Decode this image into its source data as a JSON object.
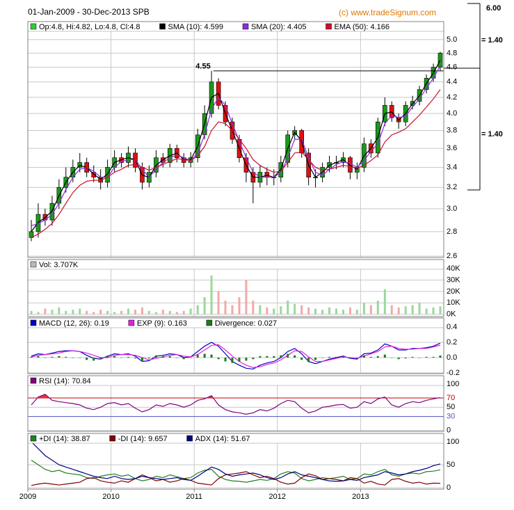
{
  "header": {
    "title": "01-Jan-2009 - 30-Dec-2013 SPB",
    "copyright": "(c) www.tradeSignum.com"
  },
  "side_scale": {
    "labels": [
      "6.00",
      "= 1.40",
      "= 1.40"
    ]
  },
  "chart_data": [
    {
      "type": "candlestick",
      "log_scale": true,
      "grid": true,
      "legend_label": "Op:4.8, Hi:4.82, Lo:4.8, Cl:4.8",
      "legend_color": "#33cc33",
      "up_color": "#1a9a1a",
      "down_color": "#e01010",
      "xlim": [
        2009,
        2014
      ],
      "xticks": [
        2009,
        2010,
        2011,
        2012,
        2013
      ],
      "ylim": [
        2.59,
        5.28
      ],
      "yticks": [
        2.6,
        2.8,
        {
          "value": 3,
          "label": "3.0"
        },
        3.2,
        3.4,
        3.6,
        3.8,
        {
          "value": 4,
          "label": "4.0"
        },
        4.2,
        4.4,
        4.6,
        4.8,
        {
          "value": 5,
          "label": "5.0"
        }
      ],
      "annotation": {
        "value": 4.55,
        "x": 2011.23
      },
      "x": [
        2009.042,
        2009.125,
        2009.208,
        2009.292,
        2009.375,
        2009.458,
        2009.542,
        2009.625,
        2009.708,
        2009.792,
        2009.875,
        2009.958,
        2010.042,
        2010.125,
        2010.208,
        2010.292,
        2010.375,
        2010.458,
        2010.542,
        2010.625,
        2010.708,
        2010.792,
        2010.875,
        2010.958,
        2011.042,
        2011.125,
        2011.208,
        2011.292,
        2011.375,
        2011.458,
        2011.542,
        2011.625,
        2011.708,
        2011.792,
        2011.875,
        2011.958,
        2012.042,
        2012.125,
        2012.208,
        2012.292,
        2012.375,
        2012.458,
        2012.542,
        2012.625,
        2012.708,
        2012.792,
        2012.875,
        2012.958,
        2013.042,
        2013.125,
        2013.208,
        2013.292,
        2013.375,
        2013.458,
        2013.542,
        2013.625,
        2013.708,
        2013.792,
        2013.875,
        2013.958
      ],
      "open": [
        2.75,
        2.8,
        2.95,
        2.9,
        3.05,
        3.2,
        3.3,
        3.4,
        3.45,
        3.35,
        3.3,
        3.25,
        3.4,
        3.5,
        3.45,
        3.55,
        3.4,
        3.25,
        3.35,
        3.5,
        3.45,
        3.6,
        3.5,
        3.45,
        3.5,
        3.75,
        4.0,
        4.4,
        4.1,
        3.9,
        3.7,
        3.5,
        3.35,
        3.25,
        3.35,
        3.3,
        3.3,
        3.45,
        3.75,
        3.8,
        3.55,
        3.3,
        3.3,
        3.4,
        3.45,
        3.45,
        3.5,
        3.35,
        3.4,
        3.65,
        3.55,
        3.9,
        4.1,
        3.95,
        3.9,
        4.1,
        4.15,
        4.3,
        4.45,
        4.6
      ],
      "high": [
        2.9,
        3.05,
        3.0,
        3.12,
        3.28,
        3.4,
        3.48,
        3.55,
        3.5,
        3.42,
        3.38,
        3.48,
        3.58,
        3.55,
        3.62,
        3.6,
        3.45,
        3.42,
        3.58,
        3.55,
        3.65,
        3.64,
        3.55,
        3.56,
        3.82,
        4.1,
        4.55,
        4.45,
        4.15,
        3.95,
        3.75,
        3.55,
        3.4,
        3.42,
        3.4,
        3.38,
        3.52,
        3.8,
        3.85,
        3.82,
        3.6,
        3.38,
        3.45,
        3.52,
        3.52,
        3.56,
        3.52,
        3.45,
        3.72,
        3.7,
        3.95,
        4.2,
        4.15,
        4.0,
        4.15,
        4.22,
        4.35,
        4.5,
        4.65,
        4.82
      ],
      "low": [
        2.72,
        2.75,
        2.85,
        2.85,
        3.0,
        3.15,
        3.25,
        3.35,
        3.3,
        3.25,
        3.18,
        3.2,
        3.35,
        3.4,
        3.4,
        3.35,
        3.18,
        3.2,
        3.3,
        3.4,
        3.4,
        3.45,
        3.4,
        3.4,
        3.45,
        3.7,
        3.95,
        4.05,
        3.85,
        3.65,
        3.45,
        3.25,
        3.05,
        3.2,
        3.22,
        3.22,
        3.25,
        3.4,
        3.7,
        3.5,
        3.22,
        3.2,
        3.25,
        3.35,
        3.38,
        3.4,
        3.28,
        3.28,
        3.35,
        3.5,
        3.5,
        3.85,
        3.9,
        3.82,
        3.85,
        4.05,
        4.1,
        4.25,
        4.4,
        4.55
      ],
      "close": [
        2.8,
        2.95,
        2.9,
        3.05,
        3.2,
        3.3,
        3.4,
        3.45,
        3.35,
        3.3,
        3.25,
        3.4,
        3.5,
        3.45,
        3.55,
        3.4,
        3.25,
        3.35,
        3.5,
        3.45,
        3.6,
        3.5,
        3.45,
        3.5,
        3.75,
        4.0,
        4.4,
        4.1,
        3.9,
        3.7,
        3.5,
        3.35,
        3.25,
        3.35,
        3.3,
        3.3,
        3.45,
        3.75,
        3.8,
        3.55,
        3.3,
        3.3,
        3.4,
        3.45,
        3.45,
        3.5,
        3.35,
        3.4,
        3.65,
        3.55,
        3.9,
        4.1,
        3.95,
        3.9,
        4.1,
        4.15,
        4.3,
        4.45,
        4.6,
        4.8
      ],
      "series": [
        {
          "name": "SMA (10): 4.599",
          "type": "line",
          "color": "#000000",
          "values": [
            2.8,
            2.88,
            2.92,
            2.98,
            3.12,
            3.25,
            3.35,
            3.42,
            3.4,
            3.33,
            3.28,
            3.33,
            3.45,
            3.48,
            3.5,
            3.48,
            3.32,
            3.3,
            3.42,
            3.48,
            3.52,
            3.55,
            3.48,
            3.48,
            3.62,
            3.88,
            4.2,
            4.25,
            4.0,
            3.8,
            3.6,
            3.42,
            3.3,
            3.3,
            3.32,
            3.3,
            3.38,
            3.6,
            3.78,
            3.68,
            3.42,
            3.3,
            3.35,
            3.42,
            3.45,
            3.48,
            3.42,
            3.38,
            3.52,
            3.6,
            3.72,
            4.0,
            4.02,
            3.92,
            4.0,
            4.12,
            4.22,
            4.38,
            4.52,
            4.7
          ]
        },
        {
          "name": "SMA (20): 4.405",
          "type": "line",
          "color": "#8a2be2",
          "values": [
            2.85,
            2.87,
            2.9,
            2.95,
            3.05,
            3.18,
            3.3,
            3.38,
            3.4,
            3.36,
            3.3,
            3.3,
            3.4,
            3.46,
            3.48,
            3.48,
            3.38,
            3.3,
            3.38,
            3.45,
            3.5,
            3.53,
            3.5,
            3.47,
            3.55,
            3.75,
            4.05,
            4.2,
            4.1,
            3.88,
            3.68,
            3.5,
            3.35,
            3.3,
            3.3,
            3.3,
            3.35,
            3.5,
            3.7,
            3.7,
            3.5,
            3.35,
            3.32,
            3.38,
            3.43,
            3.46,
            3.44,
            3.4,
            3.47,
            3.57,
            3.65,
            3.88,
            3.98,
            3.95,
            3.97,
            4.08,
            4.18,
            4.32,
            4.45,
            4.62
          ]
        },
        {
          "name": "EMA (50): 4.166",
          "type": "line",
          "color": "#c8102e",
          "values": [
            2.75,
            2.78,
            2.82,
            2.87,
            2.95,
            3.05,
            3.15,
            3.22,
            3.26,
            3.27,
            3.27,
            3.3,
            3.35,
            3.38,
            3.42,
            3.43,
            3.4,
            3.37,
            3.4,
            3.43,
            3.46,
            3.49,
            3.48,
            3.47,
            3.52,
            3.62,
            3.8,
            3.9,
            3.88,
            3.8,
            3.7,
            3.6,
            3.48,
            3.42,
            3.38,
            3.35,
            3.36,
            3.45,
            3.55,
            3.56,
            3.48,
            3.4,
            3.37,
            3.38,
            3.4,
            3.42,
            3.41,
            3.39,
            3.42,
            3.47,
            3.53,
            3.67,
            3.75,
            3.78,
            3.82,
            3.9,
            3.98,
            4.08,
            4.18,
            4.3
          ]
        }
      ]
    },
    {
      "type": "combo",
      "grid": true,
      "ylim": [
        -2000,
        48000
      ],
      "yticks": [
        {
          "value": 0,
          "label": "0K"
        },
        {
          "value": 10000,
          "label": "10K"
        },
        {
          "value": 20000,
          "label": "20K"
        },
        {
          "value": 30000,
          "label": "30K"
        },
        {
          "value": 40000,
          "label": "40K"
        }
      ],
      "series": [
        {
          "name": "Vol: 3.707K",
          "type": "volume",
          "color": "#b8b8b8",
          "up_color": "#9ad89a",
          "down_color": "#f2a8a8",
          "values": [
            3000,
            2000,
            5000,
            4000,
            6000,
            3000,
            4000,
            5000,
            3000,
            2000,
            4000,
            3000,
            2000,
            3000,
            5000,
            4000,
            6000,
            3000,
            2000,
            4000,
            3000,
            2000,
            3000,
            5000,
            8000,
            15000,
            34000,
            20000,
            12000,
            8000,
            15000,
            30000,
            12000,
            8000,
            6000,
            5000,
            7000,
            12000,
            9000,
            8000,
            6000,
            5000,
            4000,
            6000,
            5000,
            4000,
            6000,
            4000,
            10000,
            8000,
            12000,
            22000,
            8000,
            6000,
            7000,
            8000,
            10000,
            5000,
            6000,
            7000
          ]
        }
      ]
    },
    {
      "type": "combo",
      "grid": true,
      "ylim": [
        -0.21,
        0.52
      ],
      "yticks": [
        -0.2,
        {
          "value": 0,
          "label": "0.0"
        },
        0.2,
        0.4
      ],
      "series": [
        {
          "name": "MACD (12, 26): 0.19",
          "type": "line",
          "color": "#0000c0",
          "values": [
            0.02,
            0.05,
            0.04,
            0.06,
            0.08,
            0.09,
            0.09,
            0.08,
            0.03,
            -0.01,
            -0.02,
            0.02,
            0.05,
            0.04,
            0.05,
            0.02,
            -0.05,
            -0.04,
            0.02,
            0.03,
            0.05,
            0.04,
            0.0,
            0.01,
            0.08,
            0.15,
            0.2,
            0.15,
            0.05,
            -0.05,
            -0.1,
            -0.14,
            -0.15,
            -0.1,
            -0.07,
            -0.05,
            0.0,
            0.08,
            0.12,
            0.05,
            -0.05,
            -0.08,
            -0.05,
            -0.02,
            0.0,
            0.02,
            -0.01,
            -0.02,
            0.05,
            0.06,
            0.1,
            0.18,
            0.15,
            0.1,
            0.1,
            0.12,
            0.12,
            0.13,
            0.15,
            0.19
          ]
        },
        {
          "name": "EXP (9): 0.163",
          "type": "line",
          "color": "#e020e0",
          "values": [
            0.01,
            0.03,
            0.04,
            0.05,
            0.06,
            0.08,
            0.09,
            0.08,
            0.06,
            0.03,
            0.0,
            0.0,
            0.03,
            0.04,
            0.04,
            0.03,
            0.0,
            -0.03,
            -0.01,
            0.01,
            0.03,
            0.04,
            0.02,
            0.01,
            0.04,
            0.1,
            0.16,
            0.17,
            0.1,
            0.02,
            -0.05,
            -0.1,
            -0.13,
            -0.12,
            -0.09,
            -0.07,
            -0.03,
            0.03,
            0.09,
            0.08,
            0.01,
            -0.05,
            -0.05,
            -0.03,
            -0.01,
            0.01,
            0.0,
            -0.01,
            0.02,
            0.05,
            0.08,
            0.14,
            0.15,
            0.12,
            0.11,
            0.11,
            0.12,
            0.12,
            0.14,
            0.163
          ]
        },
        {
          "name": "Divergence: 0.027",
          "type": "bar",
          "color": "#1e7a1e",
          "values": [
            0.01,
            0.02,
            0.0,
            0.01,
            0.02,
            0.01,
            0.0,
            0.0,
            -0.03,
            -0.04,
            -0.02,
            0.02,
            0.02,
            0.0,
            0.01,
            -0.01,
            -0.05,
            -0.01,
            0.03,
            0.02,
            0.02,
            0.0,
            -0.02,
            0.0,
            0.04,
            0.05,
            0.04,
            -0.02,
            -0.05,
            -0.07,
            -0.05,
            -0.04,
            -0.02,
            0.02,
            0.02,
            0.02,
            0.03,
            0.05,
            0.03,
            -0.03,
            -0.06,
            -0.03,
            0.0,
            0.01,
            0.01,
            0.01,
            -0.01,
            -0.01,
            0.03,
            0.01,
            0.02,
            0.04,
            0.0,
            -0.02,
            -0.01,
            0.01,
            0.0,
            0.01,
            0.01,
            0.027
          ]
        }
      ]
    },
    {
      "type": "combo",
      "grid": true,
      "ylim": [
        -2,
        118
      ],
      "yticks": [
        0,
        50,
        100
      ],
      "levels": [
        70,
        30
      ],
      "level_colors": [
        "#c00000",
        "#5050c0"
      ],
      "fill_color": "#ee3030",
      "series": [
        {
          "name": "RSI (14): 70.84",
          "type": "line",
          "color": "#800080",
          "values": [
            55,
            72,
            78,
            65,
            62,
            60,
            58,
            55,
            48,
            45,
            50,
            58,
            60,
            55,
            58,
            48,
            40,
            45,
            55,
            52,
            58,
            55,
            50,
            55,
            65,
            68,
            75,
            55,
            45,
            40,
            38,
            35,
            38,
            45,
            42,
            48,
            58,
            65,
            62,
            48,
            38,
            42,
            50,
            52,
            55,
            56,
            48,
            50,
            62,
            58,
            68,
            72,
            55,
            50,
            58,
            62,
            60,
            65,
            68,
            70.84
          ]
        }
      ]
    },
    {
      "type": "combo",
      "grid": true,
      "ylim": [
        -3,
        118
      ],
      "yticks": [
        0,
        50,
        100
      ],
      "series": [
        {
          "name": "+DI (14): 38.87",
          "type": "line",
          "color": "#208020",
          "values": [
            60,
            50,
            40,
            35,
            38,
            32,
            30,
            28,
            22,
            20,
            25,
            28,
            30,
            25,
            28,
            20,
            15,
            18,
            25,
            22,
            28,
            24,
            20,
            22,
            32,
            38,
            40,
            25,
            18,
            15,
            14,
            12,
            15,
            18,
            16,
            20,
            30,
            35,
            32,
            20,
            15,
            18,
            22,
            20,
            22,
            25,
            18,
            20,
            30,
            28,
            35,
            40,
            28,
            25,
            30,
            32,
            30,
            35,
            36,
            38.87
          ]
        },
        {
          "name": "-DI (14): 9.657",
          "type": "line",
          "color": "#800000",
          "values": [
            5,
            8,
            10,
            8,
            6,
            8,
            10,
            12,
            20,
            22,
            15,
            12,
            10,
            15,
            12,
            20,
            28,
            22,
            15,
            18,
            12,
            15,
            20,
            16,
            10,
            8,
            6,
            20,
            28,
            30,
            32,
            35,
            28,
            22,
            25,
            20,
            12,
            8,
            10,
            22,
            30,
            26,
            18,
            20,
            18,
            15,
            22,
            20,
            10,
            14,
            8,
            6,
            18,
            20,
            14,
            10,
            12,
            8,
            10,
            9.657
          ]
        },
        {
          "name": "ADX (14): 51.67",
          "type": "line",
          "color": "#000080",
          "values": [
            100,
            85,
            70,
            60,
            50,
            45,
            40,
            35,
            30,
            25,
            22,
            20,
            25,
            20,
            18,
            20,
            25,
            22,
            20,
            18,
            20,
            22,
            18,
            16,
            25,
            35,
            45,
            40,
            30,
            25,
            28,
            30,
            32,
            28,
            22,
            18,
            22,
            30,
            35,
            28,
            25,
            22,
            18,
            15,
            14,
            15,
            18,
            16,
            22,
            25,
            28,
            35,
            32,
            28,
            30,
            35,
            38,
            42,
            48,
            51.67
          ]
        }
      ]
    }
  ]
}
